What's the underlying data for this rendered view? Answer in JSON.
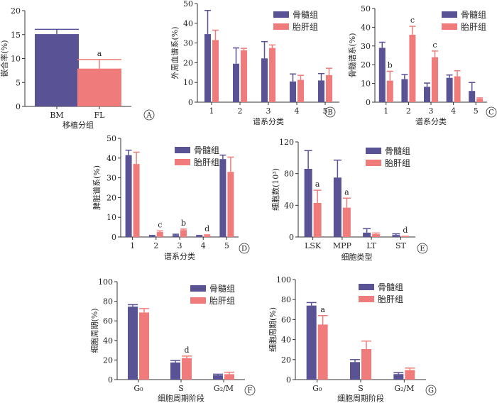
{
  "colors": {
    "bm": "#595395",
    "fl": "#ef7c7a",
    "axis": "#333333"
  },
  "chart_data": [
    {
      "id": "A",
      "type": "bar",
      "ylabel": "嵌合率(%)",
      "xlabel": "移植分组",
      "ylim": [
        0,
        20
      ],
      "yticks": [
        0,
        5,
        10,
        15,
        20
      ],
      "categories": [
        "BM",
        "FL"
      ],
      "series": [
        {
          "name": "",
          "color_key": "bm",
          "values": [
            15.1,
            null
          ],
          "err": [
            1.0,
            null
          ]
        },
        {
          "name": "",
          "color_key": "fl",
          "values": [
            null,
            7.9
          ],
          "err": [
            null,
            1.9
          ]
        }
      ],
      "annotations": [
        {
          "cat": 1,
          "series": 1,
          "text": "a"
        }
      ],
      "legend": false,
      "panel_label": "A"
    },
    {
      "id": "B",
      "type": "bar",
      "ylabel": "外周血谱系(%)",
      "xlabel": "谱系分类",
      "ylim": [
        0,
        50
      ],
      "yticks": [
        0,
        10,
        20,
        30,
        40,
        50
      ],
      "categories": [
        "1",
        "2",
        "3",
        "4",
        "5"
      ],
      "series": [
        {
          "name": "骨髓组",
          "color_key": "bm",
          "values": [
            34.5,
            19.5,
            22.2,
            10.5,
            11.0
          ],
          "err": [
            12.0,
            8.0,
            8.5,
            3.8,
            3.5
          ]
        },
        {
          "name": "胎肝组",
          "color_key": "fl",
          "values": [
            31.5,
            26.3,
            27.5,
            11.3,
            13.7
          ],
          "err": [
            5.0,
            1.0,
            1.5,
            2.3,
            3.5
          ]
        }
      ],
      "annotations": [],
      "legend": true,
      "panel_label": "B"
    },
    {
      "id": "C",
      "type": "bar",
      "ylabel": "骨髓谱系(%)",
      "xlabel": "谱系分类",
      "ylim": [
        0,
        50
      ],
      "yticks": [
        0,
        10,
        20,
        30,
        40,
        50
      ],
      "categories": [
        "1",
        "2",
        "3",
        "4",
        "5"
      ],
      "series": [
        {
          "name": "骨髓组",
          "color_key": "bm",
          "values": [
            29.0,
            12.3,
            8.2,
            13.0,
            6.0
          ],
          "err": [
            3.0,
            2.5,
            2.0,
            1.5,
            4.5
          ]
        },
        {
          "name": "胎肝组",
          "color_key": "fl",
          "values": [
            11.5,
            36.0,
            24.0,
            13.8,
            1.8
          ],
          "err": [
            5.0,
            4.5,
            3.3,
            3.0,
            0.5
          ]
        }
      ],
      "annotations": [
        {
          "cat": 0,
          "series": 1,
          "text": "b"
        },
        {
          "cat": 1,
          "series": 1,
          "text": "c"
        },
        {
          "cat": 2,
          "series": 1,
          "text": "c"
        }
      ],
      "legend": true,
      "panel_label": "C"
    },
    {
      "id": "D",
      "type": "bar",
      "ylabel": "脾脏谱系(%)",
      "xlabel": "谱系分类",
      "ylim": [
        0,
        50
      ],
      "yticks": [
        0,
        10,
        20,
        30,
        40,
        50
      ],
      "categories": [
        "1",
        "2",
        "3",
        "4",
        "5"
      ],
      "series": [
        {
          "name": "骨髓组",
          "color_key": "bm",
          "values": [
            41.5,
            0.5,
            1.0,
            0.5,
            39.5
          ],
          "err": [
            2.5,
            0.3,
            0.4,
            0.3,
            2.0
          ]
        },
        {
          "name": "胎肝组",
          "color_key": "fl",
          "values": [
            37.0,
            2.5,
            3.5,
            0.8,
            33.0
          ],
          "err": [
            6.0,
            0.6,
            0.5,
            0.3,
            7.5
          ]
        }
      ],
      "annotations": [
        {
          "cat": 1,
          "series": 1,
          "text": "c"
        },
        {
          "cat": 2,
          "series": 1,
          "text": "b"
        },
        {
          "cat": 3,
          "series": 1,
          "text": "d"
        }
      ],
      "legend": true,
      "panel_label": "D"
    },
    {
      "id": "E",
      "type": "bar",
      "ylabel": "细胞数(10³)",
      "xlabel": "细胞类型",
      "ylim": [
        0,
        120
      ],
      "yticks": [
        0,
        40,
        80,
        120
      ],
      "categories": [
        "LSK",
        "MPP",
        "LT",
        "ST"
      ],
      "series": [
        {
          "name": "骨髓组",
          "color_key": "bm",
          "values": [
            86.0,
            75.0,
            5.5,
            2.5
          ],
          "err": [
            23.0,
            22.0,
            5.0,
            1.5
          ]
        },
        {
          "name": "胎肝组",
          "color_key": "fl",
          "values": [
            43.0,
            37.0,
            3.5,
            0.5
          ],
          "err": [
            16.0,
            12.0,
            1.5,
            0.3
          ]
        }
      ],
      "annotations": [
        {
          "cat": 0,
          "series": 1,
          "text": "a"
        },
        {
          "cat": 1,
          "series": 1,
          "text": "a"
        },
        {
          "cat": 3,
          "series": 1,
          "text": "d"
        }
      ],
      "legend": true,
      "panel_label": "E"
    },
    {
      "id": "F",
      "type": "bar",
      "ylabel": "细胞周期(%)",
      "xlabel": "细胞周期阶段",
      "ylim": [
        0,
        100
      ],
      "yticks": [
        0,
        20,
        40,
        60,
        80,
        100
      ],
      "categories": [
        "G₀",
        "S",
        "G₂/M"
      ],
      "series": [
        {
          "name": "骨髓组",
          "color_key": "bm",
          "values": [
            74.5,
            17.5,
            4.5
          ],
          "err": [
            2.0,
            2.0,
            1.0
          ]
        },
        {
          "name": "胎肝组",
          "color_key": "fl",
          "values": [
            68.5,
            22.0,
            5.5
          ],
          "err": [
            4.0,
            2.0,
            2.0
          ]
        }
      ],
      "annotations": [
        {
          "cat": 1,
          "series": 1,
          "text": "d"
        }
      ],
      "legend": true,
      "panel_label": "F"
    },
    {
      "id": "G",
      "type": "bar",
      "ylabel": "细胞周期(%)",
      "xlabel": "细胞周期阶段",
      "ylim": [
        0,
        100
      ],
      "yticks": [
        0,
        20,
        40,
        60,
        80,
        100
      ],
      "categories": [
        "G₀",
        "S",
        "G₂/M"
      ],
      "series": [
        {
          "name": "骨髓组",
          "color_key": "bm",
          "values": [
            74.0,
            17.5,
            5.5
          ],
          "err": [
            3.0,
            2.5,
            1.5
          ]
        },
        {
          "name": "胎肝组",
          "color_key": "fl",
          "values": [
            55.0,
            30.5,
            9.5
          ],
          "err": [
            9.0,
            8.0,
            2.0
          ]
        }
      ],
      "annotations": [
        {
          "cat": 0,
          "series": 1,
          "text": "a"
        }
      ],
      "legend": true,
      "panel_label": "G"
    }
  ]
}
